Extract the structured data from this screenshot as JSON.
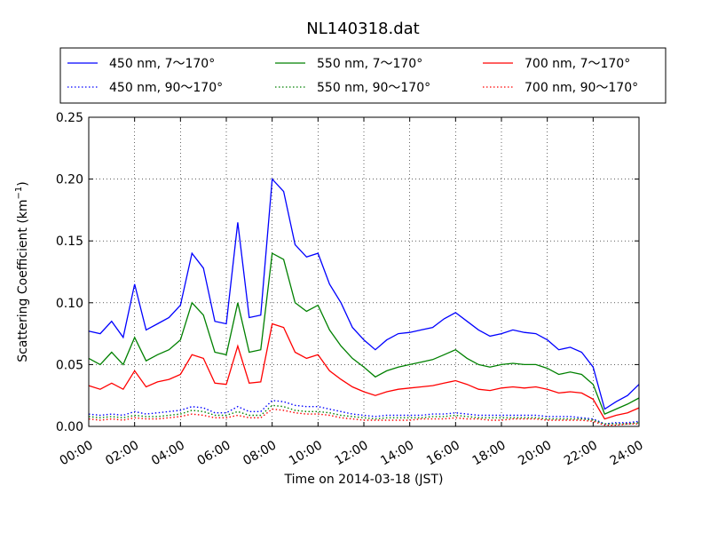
{
  "chart_data": {
    "type": "line",
    "title": "NL140318.dat",
    "xlabel": "Time on 2014-03-18 (JST)",
    "ylabel_main": "Scattering Coefficient (km",
    "ylabel_sup": "−1",
    "ylabel_end": ")",
    "ylim": [
      0,
      0.25
    ],
    "xlim": [
      "00:00",
      "24:00"
    ],
    "x_ticks": [
      "00:00",
      "02:00",
      "04:00",
      "06:00",
      "08:00",
      "10:00",
      "12:00",
      "14:00",
      "16:00",
      "18:00",
      "20:00",
      "22:00",
      "24:00"
    ],
    "y_ticks": [
      "0.00",
      "0.05",
      "0.10",
      "0.15",
      "0.20",
      "0.25"
    ],
    "grid": true,
    "legend_position": "top",
    "x_hours": [
      0,
      0.5,
      1,
      1.5,
      2,
      2.5,
      3,
      3.5,
      4,
      4.5,
      5,
      5.5,
      6,
      6.5,
      7,
      7.5,
      8,
      8.5,
      9,
      9.5,
      10,
      10.5,
      11,
      11.5,
      12,
      12.5,
      13,
      13.5,
      14,
      14.5,
      15,
      15.5,
      16,
      16.5,
      17,
      17.5,
      18,
      18.5,
      19,
      19.5,
      20,
      20.5,
      21,
      21.5,
      22,
      22.5,
      23,
      23.5,
      24
    ],
    "series": [
      {
        "name": "450 nm, 7～170°",
        "color": "#0000ff",
        "style": "solid",
        "values": [
          0.077,
          0.075,
          0.085,
          0.072,
          0.115,
          0.078,
          0.083,
          0.088,
          0.098,
          0.14,
          0.128,
          0.085,
          0.083,
          0.165,
          0.088,
          0.09,
          0.2,
          0.19,
          0.147,
          0.137,
          0.14,
          0.115,
          0.1,
          0.08,
          0.07,
          0.062,
          0.07,
          0.075,
          0.076,
          0.078,
          0.08,
          0.087,
          0.092,
          0.085,
          0.078,
          0.073,
          0.075,
          0.078,
          0.076,
          0.075,
          0.07,
          0.062,
          0.064,
          0.06,
          0.048,
          0.014,
          0.02,
          0.025,
          0.034
        ]
      },
      {
        "name": "450 nm, 90～170°",
        "color": "#0000ff",
        "style": "dotted",
        "values": [
          0.01,
          0.009,
          0.01,
          0.009,
          0.012,
          0.01,
          0.011,
          0.012,
          0.013,
          0.016,
          0.015,
          0.011,
          0.011,
          0.016,
          0.012,
          0.012,
          0.021,
          0.02,
          0.017,
          0.016,
          0.016,
          0.014,
          0.012,
          0.01,
          0.009,
          0.008,
          0.009,
          0.009,
          0.009,
          0.009,
          0.01,
          0.01,
          0.011,
          0.01,
          0.009,
          0.009,
          0.009,
          0.009,
          0.009,
          0.009,
          0.008,
          0.008,
          0.008,
          0.007,
          0.006,
          0.002,
          0.003,
          0.003,
          0.004
        ]
      },
      {
        "name": "550 nm, 7～170°",
        "color": "#008000",
        "style": "solid",
        "values": [
          0.055,
          0.05,
          0.06,
          0.05,
          0.072,
          0.053,
          0.058,
          0.062,
          0.07,
          0.1,
          0.09,
          0.06,
          0.058,
          0.1,
          0.06,
          0.062,
          0.14,
          0.135,
          0.1,
          0.093,
          0.098,
          0.078,
          0.065,
          0.055,
          0.048,
          0.04,
          0.045,
          0.048,
          0.05,
          0.052,
          0.054,
          0.058,
          0.062,
          0.055,
          0.05,
          0.048,
          0.05,
          0.051,
          0.05,
          0.05,
          0.047,
          0.042,
          0.044,
          0.042,
          0.034,
          0.01,
          0.014,
          0.018,
          0.023
        ]
      },
      {
        "name": "550 nm, 90～170°",
        "color": "#008000",
        "style": "dotted",
        "values": [
          0.008,
          0.007,
          0.008,
          0.007,
          0.009,
          0.008,
          0.008,
          0.009,
          0.01,
          0.013,
          0.012,
          0.009,
          0.009,
          0.012,
          0.009,
          0.009,
          0.017,
          0.016,
          0.013,
          0.012,
          0.012,
          0.011,
          0.009,
          0.008,
          0.007,
          0.006,
          0.007,
          0.007,
          0.007,
          0.007,
          0.008,
          0.008,
          0.009,
          0.008,
          0.007,
          0.007,
          0.007,
          0.007,
          0.007,
          0.007,
          0.006,
          0.006,
          0.006,
          0.006,
          0.005,
          0.002,
          0.002,
          0.002,
          0.003
        ]
      },
      {
        "name": "700 nm, 7～170°",
        "color": "#ff0000",
        "style": "solid",
        "values": [
          0.033,
          0.03,
          0.035,
          0.03,
          0.045,
          0.032,
          0.036,
          0.038,
          0.042,
          0.058,
          0.055,
          0.035,
          0.034,
          0.065,
          0.035,
          0.036,
          0.083,
          0.08,
          0.06,
          0.055,
          0.058,
          0.045,
          0.038,
          0.032,
          0.028,
          0.025,
          0.028,
          0.03,
          0.031,
          0.032,
          0.033,
          0.035,
          0.037,
          0.034,
          0.03,
          0.029,
          0.031,
          0.032,
          0.031,
          0.032,
          0.03,
          0.027,
          0.028,
          0.027,
          0.022,
          0.006,
          0.009,
          0.011,
          0.015
        ]
      },
      {
        "name": "700 nm, 90～170°",
        "color": "#ff0000",
        "style": "dotted",
        "values": [
          0.006,
          0.005,
          0.006,
          0.005,
          0.007,
          0.006,
          0.006,
          0.007,
          0.008,
          0.01,
          0.009,
          0.007,
          0.007,
          0.009,
          0.007,
          0.007,
          0.014,
          0.013,
          0.011,
          0.01,
          0.01,
          0.009,
          0.007,
          0.006,
          0.005,
          0.005,
          0.005,
          0.005,
          0.005,
          0.006,
          0.006,
          0.006,
          0.007,
          0.006,
          0.006,
          0.005,
          0.005,
          0.006,
          0.006,
          0.006,
          0.005,
          0.005,
          0.005,
          0.005,
          0.004,
          0.001,
          0.001,
          0.002,
          0.002
        ]
      }
    ]
  }
}
